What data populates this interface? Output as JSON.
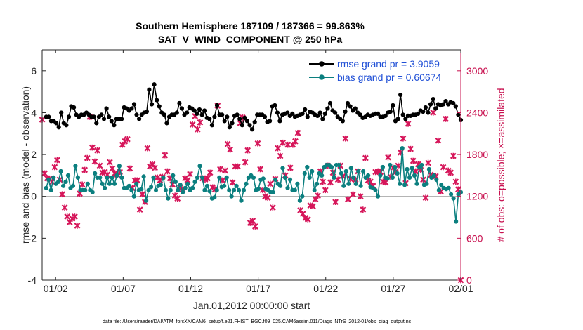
{
  "chart_data": {
    "type": "line",
    "title_line1": "Southern Hemisphere 187109 / 187366 = 99.863%",
    "title_line2": "SAT_V_WIND_COMPONENT @ 250 hPa",
    "xlabel": "Jan.01,2012 00:00:00 start",
    "ylabel": "rmse and bias (model - observation)",
    "ylabel_right": "# of obs: o=possible; ×=assimilated",
    "footnote": "data file: /Users/raeder/DAI/ATM_forcXX/CAM6_setup/f.e21.FHIST_BGC.f09_025.CAM6assim.011/Diags_NTrS_2012-01/obs_diag_output.nc",
    "x_day_range": [
      0,
      31
    ],
    "ylim": [
      -4,
      7
    ],
    "yticks": [
      "-4",
      "-2",
      "0",
      "2",
      "4",
      "6"
    ],
    "ylim_right": [
      0,
      3300
    ],
    "yticks_right": [
      "0",
      "600",
      "1200",
      "1800",
      "2400",
      "3000"
    ],
    "xtick_labels": [
      "01/02",
      "01/07",
      "01/12",
      "01/17",
      "01/22",
      "01/27",
      "02/01"
    ],
    "xtick_days": [
      1,
      6,
      11,
      16,
      21,
      26,
      31
    ],
    "colors": {
      "rmse": "#000000",
      "bias": "#0b7f7f",
      "obs": "#d6165a",
      "zero": "#b4b4b4",
      "legend_text": "#1f4fd6",
      "right_axis": "#c8104f"
    },
    "series": [
      {
        "name": "rmse grand pr = 3.9059",
        "values": [
          3.8,
          3.8,
          3.6,
          3.6,
          3.5,
          3.3,
          4.0,
          3.5,
          3.4,
          3.8,
          4.3,
          4.25,
          3.9,
          3.8,
          3.9,
          3.9,
          4.0,
          3.9,
          3.8,
          3.8,
          3.5,
          3.8,
          3.9,
          3.7,
          4.2,
          3.8,
          3.6,
          3.4,
          3.7,
          3.7,
          3.7,
          4.25,
          4.2,
          4.1,
          4.2,
          4.4,
          3.9,
          3.7,
          3.9,
          4.0,
          4.05,
          5.1,
          4.4,
          5.35,
          4.6,
          4.3,
          4.0,
          3.9,
          3.5,
          3.8,
          3.9,
          3.9,
          4.0,
          4.45,
          4.2,
          3.9,
          4.0,
          4.25,
          4.2,
          4.1,
          3.95,
          4.15,
          3.9,
          4.1,
          3.75,
          3.7,
          3.4,
          3.8,
          4.35,
          3.9,
          3.9,
          3.6,
          3.8,
          3.3,
          3.5,
          3.85,
          3.9,
          3.7,
          3.4,
          3.75,
          3.6,
          3.4,
          3.2,
          3.55,
          3.9,
          3.9,
          3.9,
          3.8,
          3.55,
          3.6,
          4.3,
          4.35,
          4.0,
          3.6,
          3.9,
          3.95,
          4.0,
          3.85,
          3.95,
          3.8,
          3.85,
          3.9,
          3.95,
          4.15,
          3.8,
          4.05,
          4.0,
          3.9,
          3.85,
          4.0,
          3.7,
          3.95,
          4.2,
          4.45,
          4.1,
          4.0,
          3.8,
          3.7,
          3.6,
          4.05,
          4.45,
          4.3,
          4.1,
          4.2,
          4.0,
          3.9,
          3.75,
          3.8,
          3.9,
          3.85,
          3.9,
          3.95,
          3.95,
          3.8,
          3.8,
          3.85,
          4.0,
          4.05,
          4.35,
          3.6,
          3.7,
          4.85,
          3.9,
          3.7,
          3.85,
          3.85,
          3.9,
          3.9,
          3.95,
          4.1,
          4.05,
          4.25,
          4.0,
          4.4,
          4.65,
          4.2,
          4.4,
          4.35,
          4.4,
          4.55,
          4.4,
          4.5,
          4.45,
          4.3,
          3.9,
          3.65
        ],
        "marker": "filled-circle"
      },
      {
        "name": "bias grand pr = 0.60674",
        "values": [
          0.4,
          0.8,
          0.3,
          0.9,
          0.6,
          0.7,
          1.2,
          0.5,
          0.7,
          1.0,
          0.4,
          0.5,
          1.45,
          0.9,
          0.3,
          0.3,
          0.3,
          0.6,
          0.3,
          0.2,
          1.1,
          0.9,
          0.9,
          0.6,
          0.4,
          0.9,
          0.6,
          0.9,
          0.6,
          1.0,
          1.45,
          0.9,
          0.4,
          0.4,
          0.5,
          0.3,
          0.0,
          0.6,
          0.3,
          0.35,
          0.95,
          -0.2,
          0.3,
          0.45,
          0.9,
          0.3,
          0.5,
          0.55,
          0.9,
          0.3,
          -0.1,
          0.3,
          1.0,
          0.7,
          0.3,
          0.55,
          0.2,
          0.4,
          0.6,
          0.3,
          0.4,
          0.7,
          0.9,
          1.45,
          0.9,
          0.3,
          0.5,
          0.25,
          -0.1,
          -0.05,
          0.3,
          0.9,
          0.45,
          0.5,
          0.9,
          0.3,
          0.0,
          0.3,
          0.5,
          0.3,
          -0.2,
          0.3,
          0.6,
          0.9,
          1.0,
          0.9,
          0.3,
          0.35,
          0.8,
          0.85,
          0.35,
          0.3,
          0.2,
          0.2,
          0.8,
          0.6,
          0.5,
          1.35,
          0.9,
          0.4,
          0.8,
          0.3,
          0.3,
          0.6,
          -0.2,
          0.0,
          1.1,
          1.4,
          0.9,
          1.2,
          0.3,
          0.6,
          1.1,
          1.0,
          1.4,
          1.5,
          1.5,
          1.4,
          0.9,
          1.5,
          1.5,
          1.1,
          0.5,
          1.2,
          0.6,
          1.35,
          0.9,
          0.6,
          1.2,
          0.5,
          1.2,
          0.9,
          1.0,
          0.45,
          0.4,
          0.3,
          0.0,
          1.0,
          1.4,
          0.9,
          0.85,
          1.5,
          0.9,
          1.4,
          1.1,
          0.6,
          2.3,
          0.55,
          1.3,
          0.9,
          1.35,
          1.0,
          0.6,
          1.4,
          1.5,
          0.55,
          0.6,
          1.3,
          0.9,
          1.0,
          0.8,
          0.3,
          0.55,
          0.4,
          0.35,
          0.4,
          0.1,
          -0.1,
          -1.2,
          0.1,
          0.2
        ],
        "marker": "filled-circle"
      },
      {
        "name": "obs assimilated",
        "values": [
          2300,
          1530,
          1460,
          1450,
          1410,
          1620,
          1720,
          1440,
          1230,
          1040,
          910,
          830,
          880,
          910,
          780,
          1240,
          1370,
          1580,
          1750,
          2340,
          1900,
          1700,
          1860,
          1640,
          1540,
          1550,
          1510,
          1690,
          1600,
          1530,
          1510,
          1550,
          1940,
          1990,
          2020,
          1600,
          1320,
          1430,
          1430,
          1010,
          1230,
          1120,
          1890,
          1630,
          1660,
          1610,
          1470,
          1430,
          1480,
          1790,
          1560,
          1460,
          1370,
          1210,
          1170,
          1330,
          1300,
          1460,
          1430,
          1520,
          2230,
          2350,
          2160,
          2260,
          1460,
          1440,
          1460,
          1540,
          1330,
          1300,
          2500,
          1590,
          1430,
          1570,
          1950,
          1870,
          1400,
          1630,
          1630,
          2250,
          2330,
          1690,
          1860,
          820,
          850,
          770,
          1960,
          1590,
          1290,
          1200,
          1180,
          1380,
          1040,
          1450,
          1890,
          1780,
          1970,
          1500,
          1940,
          1610,
          1940,
          1990,
          2110,
          1000,
          950,
          890,
          870,
          1070,
          1060,
          1160,
          1210,
          1560,
          1410,
          1290,
          1640,
          1400,
          1540,
          1120,
          1440,
          1640,
          1490,
          2030,
          1160,
          1450,
          1230,
          1440,
          1560,
          1200,
          1010,
          1750,
          1430,
          1410,
          1350,
          1550,
          1560,
          1550,
          1410,
          1400,
          1760,
          1480,
          1610,
          1550,
          1640,
          1830,
          2030,
          1390,
          2240,
          1880,
          1710,
          1560,
          1660,
          1580,
          1440,
          1180,
          1680,
          1510,
          2400,
          1490,
          2000,
          1270,
          1620,
          2310,
          1570,
          1540,
          1780,
          1410,
          1300,
          0
        ],
        "marker": "x"
      }
    ],
    "legend_location": "top-right"
  }
}
